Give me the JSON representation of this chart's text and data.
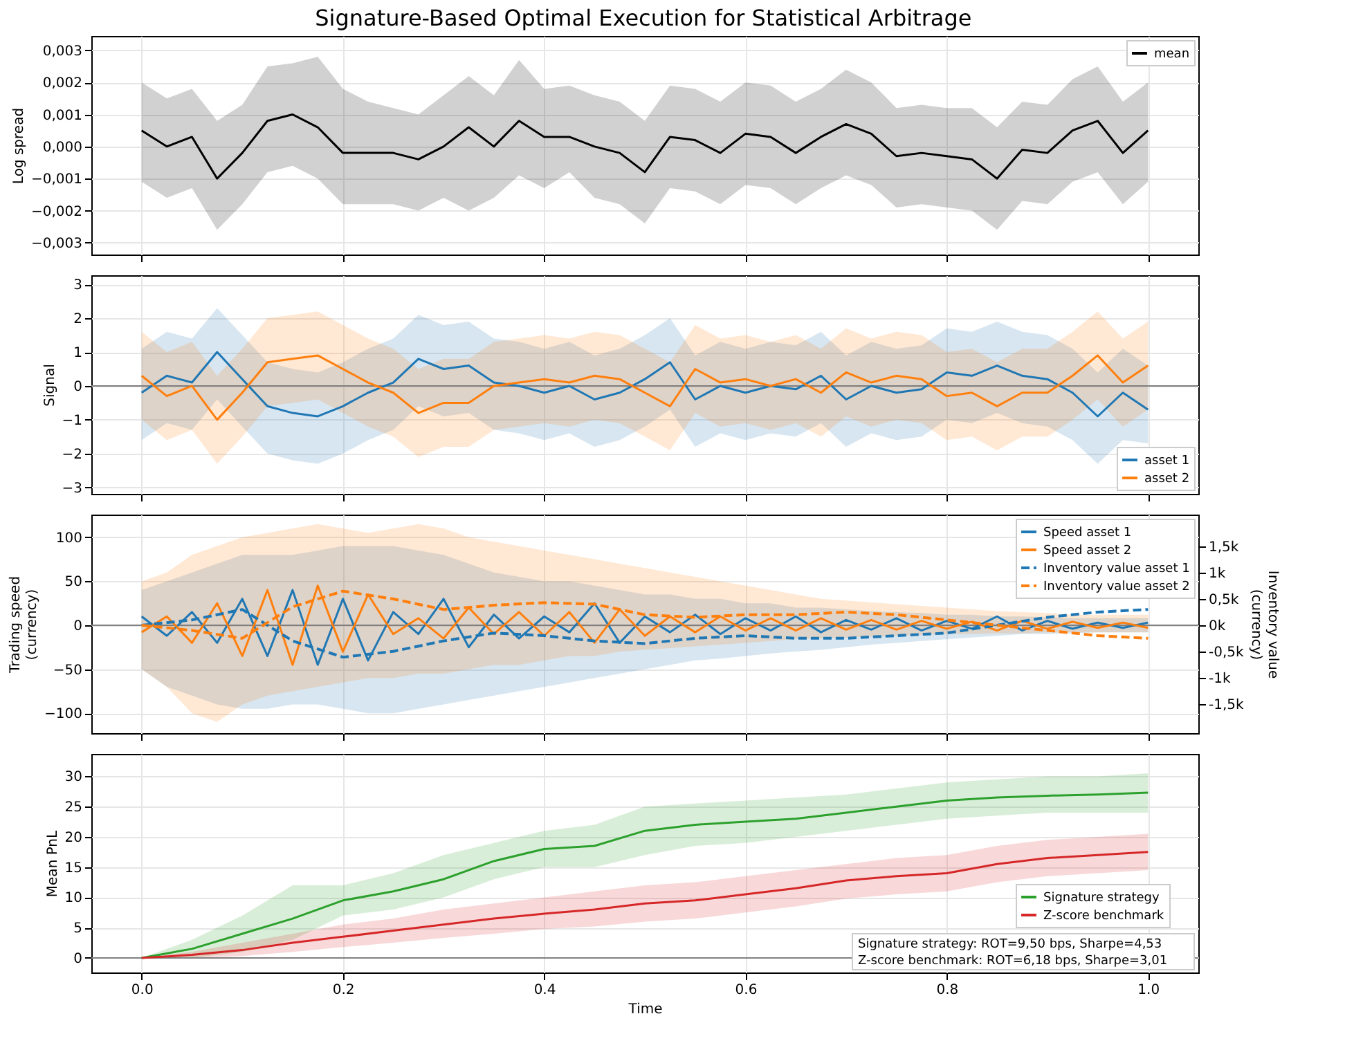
{
  "chart_data": [
    {
      "type": "line",
      "title": "Signature-Based Optimal Execution for Statistical Arbitrage",
      "ylabel": "Log spread",
      "x": [
        0,
        0.025,
        0.05,
        0.075,
        0.1,
        0.125,
        0.15,
        0.175,
        0.2,
        0.225,
        0.25,
        0.275,
        0.3,
        0.325,
        0.35,
        0.375,
        0.4,
        0.425,
        0.45,
        0.475,
        0.5,
        0.525,
        0.55,
        0.575,
        0.6,
        0.625,
        0.65,
        0.675,
        0.7,
        0.725,
        0.75,
        0.775,
        0.8,
        0.825,
        0.85,
        0.875,
        0.9,
        0.925,
        0.95,
        0.975,
        1
      ],
      "series": [
        {
          "name": "mean",
          "color": "#000000",
          "values": [
            0.0005,
            0.0,
            0.0003,
            -0.001,
            -0.0002,
            0.0008,
            0.001,
            0.0006,
            -0.0002,
            -0.0002,
            -0.0002,
            -0.0004,
            0.0,
            0.0006,
            0.0,
            0.0008,
            0.0003,
            0.0003,
            0.0,
            -0.0002,
            -0.0008,
            0.0003,
            0.0002,
            -0.0002,
            0.0004,
            0.0003,
            -0.0002,
            0.0003,
            0.0007,
            0.0004,
            -0.0003,
            -0.0002,
            -0.0003,
            -0.0004,
            -0.001,
            -0.0001,
            -0.0002,
            0.0005,
            0.0008,
            -0.0002,
            0.0005
          ],
          "upper": [
            0.002,
            0.0015,
            0.0018,
            0.0008,
            0.0013,
            0.0025,
            0.0026,
            0.0028,
            0.0018,
            0.0014,
            0.0012,
            0.001,
            0.0016,
            0.0022,
            0.0016,
            0.0027,
            0.0018,
            0.0019,
            0.0016,
            0.0014,
            0.0008,
            0.0019,
            0.0018,
            0.0014,
            0.002,
            0.0019,
            0.0014,
            0.0018,
            0.0024,
            0.002,
            0.0012,
            0.0013,
            0.0012,
            0.0012,
            0.0006,
            0.0014,
            0.0013,
            0.0021,
            0.0025,
            0.0014,
            0.002
          ],
          "lower": [
            -0.0011,
            -0.0016,
            -0.0013,
            -0.0026,
            -0.0018,
            -0.0008,
            -0.0006,
            -0.001,
            -0.0018,
            -0.0018,
            -0.0018,
            -0.002,
            -0.0016,
            -0.002,
            -0.0016,
            -0.0009,
            -0.0013,
            -0.0008,
            -0.0016,
            -0.0018,
            -0.0024,
            -0.0013,
            -0.0014,
            -0.0018,
            -0.0012,
            -0.0013,
            -0.0018,
            -0.0013,
            -0.0009,
            -0.0012,
            -0.0019,
            -0.0018,
            -0.0019,
            -0.002,
            -0.0026,
            -0.0017,
            -0.0018,
            -0.0011,
            -0.0008,
            -0.0018,
            -0.0011
          ]
        }
      ],
      "xlim": [
        -0.05,
        1.05
      ],
      "xticks": [
        0,
        0.2,
        0.4,
        0.6,
        0.8,
        1
      ],
      "ylim": [
        -0.00337,
        0.00345
      ],
      "yticks": [
        {
          "value": -0.003,
          "label": "−0,003"
        },
        {
          "value": -0.002,
          "label": "−0,002"
        },
        {
          "value": -0.001,
          "label": "−0,001"
        },
        {
          "value": 0,
          "label": "0,000"
        },
        {
          "value": 0.001,
          "label": "0,001"
        },
        {
          "value": 0.002,
          "label": "0,002"
        },
        {
          "value": 0.003,
          "label": "0,003"
        }
      ],
      "grid": true,
      "legend": "top right",
      "tick_labels": "y"
    },
    {
      "type": "line",
      "ylabel": "Signal",
      "x": [
        0,
        0.025,
        0.05,
        0.075,
        0.1,
        0.125,
        0.15,
        0.175,
        0.2,
        0.225,
        0.25,
        0.275,
        0.3,
        0.325,
        0.35,
        0.375,
        0.4,
        0.425,
        0.45,
        0.475,
        0.5,
        0.525,
        0.55,
        0.575,
        0.6,
        0.625,
        0.65,
        0.675,
        0.7,
        0.725,
        0.75,
        0.775,
        0.8,
        0.825,
        0.85,
        0.875,
        0.9,
        0.925,
        0.95,
        0.975,
        1
      ],
      "series": [
        {
          "name": "asset 1",
          "color": "#1f77b4",
          "values": [
            -0.2,
            0.3,
            0.1,
            1.0,
            0.2,
            -0.6,
            -0.8,
            -0.9,
            -0.6,
            -0.2,
            0.1,
            0.8,
            0.5,
            0.6,
            0.1,
            0.0,
            -0.2,
            0.0,
            -0.4,
            -0.2,
            0.2,
            0.7,
            -0.4,
            0.0,
            -0.2,
            0.0,
            -0.1,
            0.3,
            -0.4,
            0.0,
            -0.2,
            -0.1,
            0.4,
            0.3,
            0.6,
            0.3,
            0.2,
            -0.2,
            -0.9,
            -0.2,
            -0.7
          ],
          "upper": [
            1.1,
            1.6,
            1.4,
            2.3,
            1.5,
            0.7,
            0.5,
            0.4,
            0.7,
            1.1,
            1.4,
            2.1,
            1.8,
            1.9,
            1.4,
            1.3,
            1.1,
            1.3,
            0.9,
            1.1,
            1.5,
            2.0,
            0.9,
            1.3,
            1.1,
            1.3,
            1.2,
            1.6,
            0.9,
            1.3,
            1.1,
            1.2,
            1.7,
            1.6,
            1.9,
            1.6,
            1.5,
            1.1,
            0.4,
            1.1,
            0.6
          ],
          "lower": [
            -1.6,
            -1.1,
            -1.3,
            -0.4,
            -1.2,
            -2.0,
            -2.2,
            -2.3,
            -2.0,
            -1.6,
            -1.3,
            -0.6,
            -0.9,
            -0.8,
            -1.3,
            -1.4,
            -1.6,
            -1.4,
            -1.8,
            -1.6,
            -1.2,
            -0.7,
            -1.8,
            -1.4,
            -1.6,
            -1.4,
            -1.5,
            -1.1,
            -1.8,
            -1.4,
            -1.6,
            -1.5,
            -1.0,
            -1.1,
            -0.8,
            -1.1,
            -1.2,
            -1.6,
            -2.3,
            -1.6,
            -1.7
          ]
        },
        {
          "name": "asset 2",
          "color": "#ff7f0e",
          "values": [
            0.3,
            -0.3,
            0.0,
            -1.0,
            -0.2,
            0.7,
            0.8,
            0.9,
            0.5,
            0.1,
            -0.2,
            -0.8,
            -0.5,
            -0.5,
            0.0,
            0.1,
            0.2,
            0.1,
            0.3,
            0.2,
            -0.2,
            -0.6,
            0.5,
            0.1,
            0.2,
            0.0,
            0.2,
            -0.2,
            0.4,
            0.1,
            0.3,
            0.2,
            -0.3,
            -0.2,
            -0.6,
            -0.2,
            -0.2,
            0.3,
            0.9,
            0.1,
            0.6
          ],
          "upper": [
            1.6,
            1.0,
            1.3,
            0.3,
            1.1,
            2.0,
            2.1,
            2.2,
            1.8,
            1.4,
            1.1,
            0.5,
            0.8,
            0.8,
            1.3,
            1.4,
            1.5,
            1.4,
            1.6,
            1.5,
            1.1,
            0.7,
            1.8,
            1.4,
            1.5,
            1.3,
            1.5,
            1.1,
            1.7,
            1.4,
            1.6,
            1.5,
            1.0,
            1.1,
            0.7,
            1.1,
            1.1,
            1.6,
            2.2,
            1.4,
            1.9
          ],
          "lower": [
            -1.0,
            -1.6,
            -1.3,
            -2.3,
            -1.5,
            -0.6,
            -0.5,
            -0.4,
            -0.8,
            -1.2,
            -1.5,
            -2.1,
            -1.8,
            -1.8,
            -1.3,
            -1.2,
            -1.1,
            -1.2,
            -1.0,
            -1.1,
            -1.5,
            -1.9,
            -0.8,
            -1.2,
            -1.1,
            -1.3,
            -1.1,
            -1.5,
            -0.9,
            -1.2,
            -1.0,
            -1.1,
            -1.6,
            -1.5,
            -1.9,
            -1.5,
            -1.5,
            -1.0,
            -0.4,
            -1.2,
            -0.7
          ]
        }
      ],
      "xlim": [
        -0.05,
        1.05
      ],
      "xticks": [
        0,
        0.2,
        0.4,
        0.6,
        0.8,
        1
      ],
      "ylim": [
        -3.19,
        3.27
      ],
      "yticks": [
        {
          "value": -3,
          "label": "−3"
        },
        {
          "value": -2,
          "label": "−2"
        },
        {
          "value": -1,
          "label": "−1"
        },
        0,
        1,
        2,
        3
      ],
      "ref_lines": [
        {
          "axis": "y",
          "value": 0,
          "color": "#808080"
        }
      ],
      "grid": true,
      "legend": "bottom right",
      "tick_labels": "y"
    },
    {
      "type": "line",
      "ylabel": "Trading speed\n(currency)",
      "y2label": "Inventory value\n(currency)",
      "x": [
        0,
        0.025,
        0.05,
        0.075,
        0.1,
        0.125,
        0.15,
        0.175,
        0.2,
        0.225,
        0.25,
        0.275,
        0.3,
        0.325,
        0.35,
        0.375,
        0.4,
        0.425,
        0.45,
        0.475,
        0.5,
        0.525,
        0.55,
        0.575,
        0.6,
        0.625,
        0.65,
        0.675,
        0.7,
        0.725,
        0.75,
        0.775,
        0.8,
        0.825,
        0.85,
        0.875,
        0.9,
        0.925,
        0.95,
        0.975,
        1
      ],
      "series": [
        {
          "name": "Speed asset 1",
          "color": "#1f77b4",
          "values": [
            10,
            -12,
            15,
            -20,
            30,
            -35,
            40,
            -45,
            30,
            -40,
            15,
            -10,
            30,
            -25,
            12,
            -15,
            10,
            -8,
            25,
            -20,
            10,
            -8,
            12,
            -10,
            8,
            -6,
            10,
            -8,
            6,
            -5,
            8,
            -6,
            5,
            -4,
            10,
            -6,
            5,
            -4,
            3,
            -3,
            3
          ],
          "upper": [
            40,
            50,
            60,
            70,
            80,
            80,
            80,
            85,
            90,
            90,
            90,
            85,
            80,
            70,
            60,
            55,
            50,
            50,
            45,
            40,
            35,
            35,
            30,
            30,
            25,
            25,
            20,
            20,
            18,
            16,
            15,
            14,
            12,
            12,
            10,
            10,
            9,
            8,
            8,
            8,
            8
          ],
          "lower": [
            -50,
            -70,
            -80,
            -90,
            -95,
            -95,
            -90,
            -90,
            -95,
            -100,
            -100,
            -95,
            -90,
            -85,
            -80,
            -75,
            -70,
            -65,
            -60,
            -55,
            -50,
            -45,
            -40,
            -38,
            -35,
            -32,
            -30,
            -28,
            -25,
            -22,
            -20,
            -18,
            -16,
            -14,
            -12,
            -10,
            -10,
            -9,
            -8,
            -8,
            -8
          ]
        },
        {
          "name": "Speed asset 2",
          "color": "#ff7f0e",
          "values": [
            -8,
            10,
            -20,
            25,
            -35,
            40,
            -45,
            45,
            -30,
            35,
            -10,
            8,
            -15,
            20,
            -10,
            15,
            -12,
            15,
            -20,
            18,
            -12,
            10,
            -8,
            10,
            -6,
            8,
            -6,
            8,
            -5,
            6,
            -5,
            5,
            -4,
            4,
            -6,
            5,
            -4,
            4,
            -3,
            3,
            -3
          ],
          "upper": [
            50,
            60,
            80,
            90,
            100,
            105,
            110,
            115,
            110,
            105,
            110,
            115,
            110,
            100,
            95,
            90,
            85,
            80,
            75,
            70,
            65,
            60,
            55,
            50,
            45,
            40,
            35,
            30,
            28,
            26,
            24,
            22,
            20,
            18,
            16,
            15,
            14,
            12,
            12,
            12,
            12
          ],
          "lower": [
            -50,
            -70,
            -100,
            -110,
            -90,
            -80,
            -75,
            -70,
            -65,
            -60,
            -60,
            -55,
            -55,
            -50,
            -45,
            -45,
            -40,
            -35,
            -35,
            -30,
            -28,
            -26,
            -24,
            -22,
            -20,
            -18,
            -16,
            -15,
            -14,
            -13,
            -12,
            -11,
            -10,
            -10,
            -9,
            -9,
            -8,
            -8,
            -8,
            -8,
            -8
          ]
        },
        {
          "name": "Inventory value asset 1",
          "color": "#1f77b4",
          "axis": "y2",
          "line_style": "dashed",
          "x": [
            0,
            0.05,
            0.1,
            0.15,
            0.2,
            0.25,
            0.3,
            0.35,
            0.4,
            0.45,
            0.5,
            0.55,
            0.6,
            0.65,
            0.7,
            0.75,
            0.8,
            0.85,
            0.9,
            0.95,
            1
          ],
          "values": [
            0,
            100,
            300,
            -300,
            -610,
            -500,
            -300,
            -150,
            -200,
            -300,
            -350,
            -250,
            -200,
            -250,
            -250,
            -200,
            -150,
            0,
            150,
            250,
            300
          ]
        },
        {
          "name": "Inventory value asset 2",
          "color": "#ff7f0e",
          "axis": "y2",
          "line_style": "dashed",
          "x": [
            0,
            0.05,
            0.1,
            0.15,
            0.2,
            0.25,
            0.3,
            0.35,
            0.4,
            0.45,
            0.5,
            0.55,
            0.6,
            0.65,
            0.7,
            0.75,
            0.8,
            0.85,
            0.9,
            0.95,
            1
          ],
          "values": [
            0,
            -100,
            -250,
            350,
            650,
            500,
            300,
            380,
            430,
            400,
            200,
            150,
            200,
            200,
            250,
            200,
            100,
            0,
            -100,
            -200,
            -250
          ]
        }
      ],
      "xlim": [
        -0.05,
        1.05
      ],
      "xticks": [
        0,
        0.2,
        0.4,
        0.6,
        0.8,
        1
      ],
      "ylim": [
        -122.7,
        125.8
      ],
      "yticks": [
        {
          "value": -100,
          "label": "−100"
        },
        {
          "value": -50,
          "label": "−50"
        },
        0,
        50,
        100
      ],
      "y2lim": [
        -2060,
        2110
      ],
      "y2ticks": [
        {
          "value": -1500,
          "label": "-1,5k"
        },
        {
          "value": -1000,
          "label": "-1k"
        },
        {
          "value": -500,
          "label": "-0,5k"
        },
        {
          "value": 0,
          "label": "0k"
        },
        {
          "value": 500,
          "label": "0,5k"
        },
        {
          "value": 1000,
          "label": "1k"
        },
        {
          "value": 1500,
          "label": "1,5k"
        }
      ],
      "ref_lines": [
        {
          "axis": "y",
          "value": 0,
          "color": "#808080"
        }
      ],
      "grid": true,
      "legend": "top right",
      "tick_labels": "y"
    },
    {
      "type": "line",
      "xlabel": "Time",
      "ylabel": "Mean PnL",
      "x": [
        0,
        0.05,
        0.1,
        0.15,
        0.2,
        0.25,
        0.3,
        0.35,
        0.4,
        0.45,
        0.5,
        0.55,
        0.6,
        0.65,
        0.7,
        0.75,
        0.8,
        0.85,
        0.9,
        0.95,
        1
      ],
      "series": [
        {
          "name": "Signature strategy",
          "color": "#2ca02c",
          "values": [
            0,
            1.5,
            4,
            6.5,
            9.5,
            11,
            13,
            16,
            18,
            18.5,
            21,
            22,
            22.5,
            23,
            24,
            25,
            26,
            26.5,
            26.8,
            27,
            27.3
          ],
          "upper": [
            0,
            3,
            7,
            12,
            12,
            14,
            17,
            19,
            21,
            22,
            25,
            25.5,
            26,
            26.5,
            27,
            28,
            29,
            29.5,
            30,
            30,
            30.5
          ],
          "lower": [
            0,
            0,
            1,
            3,
            7,
            8,
            10,
            13,
            15,
            15,
            17,
            18.5,
            19,
            20,
            21,
            22,
            23,
            23.5,
            24,
            24,
            24
          ]
        },
        {
          "name": "Z-score benchmark",
          "color": "#d62728",
          "values": [
            0,
            0.5,
            1.3,
            2.5,
            3.5,
            4.5,
            5.5,
            6.5,
            7.3,
            8,
            9,
            9.5,
            10.5,
            11.5,
            12.8,
            13.5,
            14,
            15.5,
            16.5,
            17,
            17.5
          ],
          "upper": [
            0,
            1,
            2.5,
            4,
            5.5,
            6.5,
            8,
            9,
            10,
            11,
            12,
            12.5,
            13.5,
            14.5,
            15.5,
            16.5,
            17,
            18.5,
            19.5,
            20,
            20.5
          ],
          "lower": [
            0,
            0,
            0.3,
            1,
            1.8,
            2.5,
            3.3,
            4,
            4.8,
            5.2,
            6,
            6.5,
            7.5,
            8.5,
            9.8,
            10.5,
            11,
            12.5,
            13.5,
            14,
            14.5
          ]
        }
      ],
      "xlim": [
        -0.05,
        1.05
      ],
      "xticks": [
        {
          "value": 0,
          "label": "0.0"
        },
        {
          "value": 0.2,
          "label": "0.2"
        },
        {
          "value": 0.4,
          "label": "0.4"
        },
        {
          "value": 0.6,
          "label": "0.6"
        },
        {
          "value": 0.8,
          "label": "0.8"
        },
        {
          "value": 1,
          "label": "1.0"
        }
      ],
      "ylim": [
        -2.4,
        33.7
      ],
      "yticks": [
        0,
        5,
        10,
        15,
        20,
        25,
        30
      ],
      "ref_lines": [
        {
          "axis": "y",
          "value": 0,
          "color": "#808080"
        }
      ],
      "annotations": [
        "Signature strategy: ROT=9,50 bps, Sharpe=4,53",
        "Z-score benchmark: ROT=6,18 bps, Sharpe=3,01"
      ],
      "grid": true,
      "legend": "bottom right"
    }
  ]
}
